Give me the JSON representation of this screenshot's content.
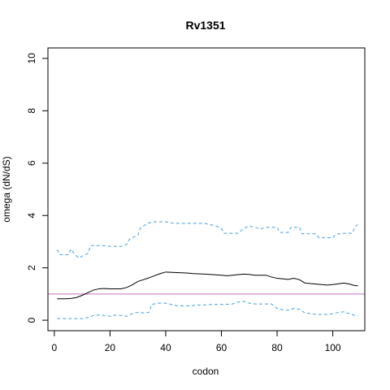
{
  "chart_data": {
    "type": "line",
    "title": "Rv1351",
    "xlabel": "codon",
    "ylabel": "omega (dN/dS)",
    "xlim": [
      -2.3,
      111.5
    ],
    "ylim": [
      -0.4,
      10.4
    ],
    "x_ticks": [
      0,
      20,
      40,
      60,
      80,
      100
    ],
    "y_ticks": [
      0,
      2,
      4,
      6,
      8,
      10
    ],
    "reference_line": {
      "y": 1,
      "color": "#c86ec8"
    },
    "legend": "none",
    "grid": false,
    "series": [
      {
        "style": "solid",
        "color": "#000000",
        "points": [
          [
            1,
            0.82
          ],
          [
            4,
            0.82
          ],
          [
            6,
            0.83
          ],
          [
            8,
            0.87
          ],
          [
            10,
            0.95
          ],
          [
            12,
            1.05
          ],
          [
            14,
            1.15
          ],
          [
            16,
            1.2
          ],
          [
            18,
            1.21
          ],
          [
            20,
            1.2
          ],
          [
            24,
            1.2
          ],
          [
            26,
            1.25
          ],
          [
            28,
            1.35
          ],
          [
            30,
            1.48
          ],
          [
            32,
            1.55
          ],
          [
            34,
            1.62
          ],
          [
            36,
            1.7
          ],
          [
            38,
            1.78
          ],
          [
            40,
            1.84
          ],
          [
            44,
            1.82
          ],
          [
            48,
            1.8
          ],
          [
            50,
            1.78
          ],
          [
            56,
            1.75
          ],
          [
            60,
            1.72
          ],
          [
            62,
            1.7
          ],
          [
            64,
            1.72
          ],
          [
            66,
            1.74
          ],
          [
            68,
            1.76
          ],
          [
            70,
            1.75
          ],
          [
            72,
            1.72
          ],
          [
            76,
            1.72
          ],
          [
            78,
            1.65
          ],
          [
            80,
            1.6
          ],
          [
            84,
            1.56
          ],
          [
            86,
            1.6
          ],
          [
            88,
            1.55
          ],
          [
            90,
            1.42
          ],
          [
            94,
            1.38
          ],
          [
            96,
            1.36
          ],
          [
            98,
            1.34
          ],
          [
            100,
            1.36
          ],
          [
            104,
            1.42
          ],
          [
            106,
            1.38
          ],
          [
            108,
            1.32
          ],
          [
            109,
            1.32
          ]
        ]
      },
      {
        "style": "dashed",
        "color": "#4a9fdd",
        "points": [
          [
            1,
            2.7
          ],
          [
            2,
            2.5
          ],
          [
            5,
            2.5
          ],
          [
            6,
            2.72
          ],
          [
            7,
            2.55
          ],
          [
            8,
            2.45
          ],
          [
            9,
            2.38
          ],
          [
            10,
            2.45
          ],
          [
            12,
            2.55
          ],
          [
            13,
            2.85
          ],
          [
            18,
            2.85
          ],
          [
            20,
            2.82
          ],
          [
            24,
            2.82
          ],
          [
            26,
            2.9
          ],
          [
            27,
            3.1
          ],
          [
            28,
            3.15
          ],
          [
            30,
            3.25
          ],
          [
            31,
            3.55
          ],
          [
            32,
            3.6
          ],
          [
            34,
            3.72
          ],
          [
            36,
            3.76
          ],
          [
            40,
            3.76
          ],
          [
            43,
            3.7
          ],
          [
            54,
            3.7
          ],
          [
            58,
            3.6
          ],
          [
            60,
            3.5
          ],
          [
            61,
            3.32
          ],
          [
            66,
            3.32
          ],
          [
            68,
            3.5
          ],
          [
            70,
            3.6
          ],
          [
            72,
            3.55
          ],
          [
            74,
            3.48
          ],
          [
            76,
            3.55
          ],
          [
            80,
            3.55
          ],
          [
            81,
            3.35
          ],
          [
            84,
            3.35
          ],
          [
            85,
            3.55
          ],
          [
            88,
            3.55
          ],
          [
            89,
            3.3
          ],
          [
            94,
            3.3
          ],
          [
            95,
            3.15
          ],
          [
            100,
            3.15
          ],
          [
            101,
            3.28
          ],
          [
            104,
            3.32
          ],
          [
            107,
            3.32
          ],
          [
            108,
            3.58
          ],
          [
            109,
            3.65
          ]
        ]
      },
      {
        "style": "dashed",
        "color": "#4a9fdd",
        "points": [
          [
            1,
            0.06
          ],
          [
            10,
            0.06
          ],
          [
            12,
            0.1
          ],
          [
            14,
            0.18
          ],
          [
            16,
            0.2
          ],
          [
            18,
            0.18
          ],
          [
            20,
            0.15
          ],
          [
            22,
            0.2
          ],
          [
            24,
            0.18
          ],
          [
            26,
            0.15
          ],
          [
            28,
            0.25
          ],
          [
            30,
            0.3
          ],
          [
            32,
            0.28
          ],
          [
            34,
            0.3
          ],
          [
            35,
            0.6
          ],
          [
            37,
            0.65
          ],
          [
            40,
            0.65
          ],
          [
            42,
            0.6
          ],
          [
            44,
            0.55
          ],
          [
            48,
            0.55
          ],
          [
            52,
            0.58
          ],
          [
            58,
            0.6
          ],
          [
            60,
            0.6
          ],
          [
            64,
            0.62
          ],
          [
            66,
            0.7
          ],
          [
            68,
            0.72
          ],
          [
            70,
            0.65
          ],
          [
            72,
            0.62
          ],
          [
            78,
            0.62
          ],
          [
            80,
            0.45
          ],
          [
            82,
            0.4
          ],
          [
            84,
            0.38
          ],
          [
            86,
            0.45
          ],
          [
            88,
            0.42
          ],
          [
            90,
            0.28
          ],
          [
            94,
            0.22
          ],
          [
            98,
            0.22
          ],
          [
            100,
            0.25
          ],
          [
            102,
            0.3
          ],
          [
            104,
            0.32
          ],
          [
            106,
            0.25
          ],
          [
            108,
            0.18
          ],
          [
            109,
            0.15
          ]
        ]
      }
    ]
  }
}
